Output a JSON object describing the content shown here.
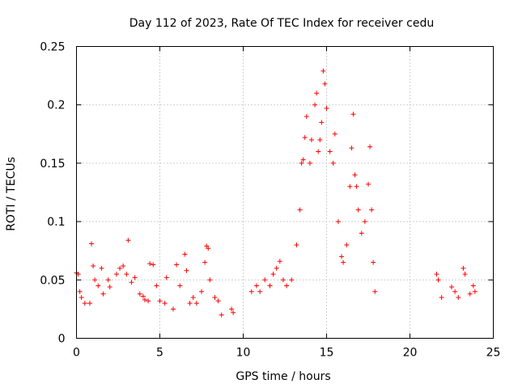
{
  "chart_data": {
    "type": "scatter",
    "title": "Day 112 of 2023, Rate Of TEC Index for receiver cedu",
    "xlabel": "GPS time / hours",
    "ylabel": "ROTI / TECUs",
    "xlim": [
      0,
      25
    ],
    "ylim": [
      0,
      0.25
    ],
    "x_ticks": [
      0,
      5,
      10,
      15,
      20,
      25
    ],
    "x_tick_labels": [
      "0",
      "5",
      "10",
      "15",
      "20",
      "25"
    ],
    "y_ticks": [
      0,
      0.05,
      0.1,
      0.15,
      0.2,
      0.25
    ],
    "y_tick_labels": [
      "0",
      "0.05",
      "0.1",
      "0.15",
      "0.2",
      "0.25"
    ],
    "grid": true,
    "marker": "+",
    "color": "#ff0000",
    "series": [
      {
        "name": "ROTI",
        "points": [
          [
            0.0,
            0.056
          ],
          [
            0.1,
            0.055
          ],
          [
            0.2,
            0.04
          ],
          [
            0.3,
            0.035
          ],
          [
            0.5,
            0.03
          ],
          [
            0.8,
            0.03
          ],
          [
            0.9,
            0.081
          ],
          [
            1.0,
            0.062
          ],
          [
            1.1,
            0.05
          ],
          [
            1.3,
            0.045
          ],
          [
            1.5,
            0.06
          ],
          [
            1.6,
            0.038
          ],
          [
            1.9,
            0.05
          ],
          [
            2.0,
            0.044
          ],
          [
            2.4,
            0.055
          ],
          [
            2.6,
            0.06
          ],
          [
            2.8,
            0.062
          ],
          [
            3.0,
            0.055
          ],
          [
            3.1,
            0.084
          ],
          [
            3.3,
            0.048
          ],
          [
            3.5,
            0.052
          ],
          [
            3.8,
            0.038
          ],
          [
            4.0,
            0.036
          ],
          [
            4.1,
            0.033
          ],
          [
            4.3,
            0.032
          ],
          [
            4.4,
            0.064
          ],
          [
            4.6,
            0.063
          ],
          [
            4.8,
            0.045
          ],
          [
            5.0,
            0.032
          ],
          [
            5.3,
            0.03
          ],
          [
            5.4,
            0.052
          ],
          [
            5.8,
            0.025
          ],
          [
            6.0,
            0.063
          ],
          [
            6.2,
            0.045
          ],
          [
            6.5,
            0.072
          ],
          [
            6.6,
            0.058
          ],
          [
            6.8,
            0.03
          ],
          [
            7.0,
            0.035
          ],
          [
            7.2,
            0.03
          ],
          [
            7.5,
            0.04
          ],
          [
            7.7,
            0.065
          ],
          [
            7.8,
            0.079
          ],
          [
            7.9,
            0.077
          ],
          [
            8.0,
            0.05
          ],
          [
            8.3,
            0.035
          ],
          [
            8.5,
            0.032
          ],
          [
            8.7,
            0.02
          ],
          [
            9.3,
            0.025
          ],
          [
            9.4,
            0.022
          ],
          [
            10.5,
            0.04
          ],
          [
            10.8,
            0.045
          ],
          [
            11.0,
            0.04
          ],
          [
            11.3,
            0.05
          ],
          [
            11.6,
            0.045
          ],
          [
            11.8,
            0.055
          ],
          [
            12.0,
            0.06
          ],
          [
            12.2,
            0.066
          ],
          [
            12.4,
            0.05
          ],
          [
            12.6,
            0.045
          ],
          [
            12.9,
            0.05
          ],
          [
            13.2,
            0.08
          ],
          [
            13.4,
            0.11
          ],
          [
            13.5,
            0.15
          ],
          [
            13.6,
            0.153
          ],
          [
            13.7,
            0.172
          ],
          [
            13.8,
            0.19
          ],
          [
            14.0,
            0.15
          ],
          [
            14.1,
            0.17
          ],
          [
            14.3,
            0.2
          ],
          [
            14.4,
            0.21
          ],
          [
            14.5,
            0.16
          ],
          [
            14.6,
            0.17
          ],
          [
            14.7,
            0.185
          ],
          [
            14.8,
            0.229
          ],
          [
            14.9,
            0.218
          ],
          [
            15.0,
            0.197
          ],
          [
            15.2,
            0.16
          ],
          [
            15.4,
            0.15
          ],
          [
            15.5,
            0.175
          ],
          [
            15.7,
            0.1
          ],
          [
            15.9,
            0.07
          ],
          [
            16.0,
            0.065
          ],
          [
            16.2,
            0.08
          ],
          [
            16.4,
            0.13
          ],
          [
            16.5,
            0.163
          ],
          [
            16.6,
            0.192
          ],
          [
            16.7,
            0.14
          ],
          [
            16.8,
            0.13
          ],
          [
            16.9,
            0.11
          ],
          [
            17.1,
            0.09
          ],
          [
            17.3,
            0.1
          ],
          [
            17.5,
            0.132
          ],
          [
            17.6,
            0.164
          ],
          [
            17.7,
            0.11
          ],
          [
            17.8,
            0.065
          ],
          [
            17.9,
            0.04
          ],
          [
            21.6,
            0.055
          ],
          [
            21.7,
            0.05
          ],
          [
            21.9,
            0.035
          ],
          [
            22.5,
            0.044
          ],
          [
            22.7,
            0.04
          ],
          [
            22.9,
            0.035
          ],
          [
            23.2,
            0.06
          ],
          [
            23.3,
            0.055
          ],
          [
            23.6,
            0.038
          ],
          [
            23.8,
            0.045
          ],
          [
            23.9,
            0.04
          ]
        ]
      }
    ]
  }
}
